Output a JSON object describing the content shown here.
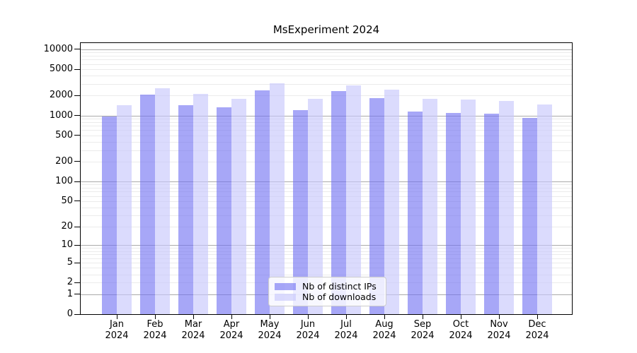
{
  "chart_data": {
    "type": "bar",
    "title": "MsExperiment 2024",
    "categories": [
      "Jan 2024",
      "Feb 2024",
      "Mar 2024",
      "Apr 2024",
      "May 2024",
      "Jun 2024",
      "Jul 2024",
      "Aug 2024",
      "Sep 2024",
      "Oct 2024",
      "Nov 2024",
      "Dec 2024"
    ],
    "series": [
      {
        "name": "Nb of distinct IPs",
        "color": "rgba(113,113,242,0.62)",
        "values": [
          970,
          2070,
          1440,
          1320,
          2380,
          1210,
          2360,
          1850,
          1140,
          1090,
          1070,
          910
        ]
      },
      {
        "name": "Nb of downloads",
        "color": "rgba(200,200,252,0.65)",
        "values": [
          1420,
          2600,
          2100,
          1800,
          3050,
          1800,
          2880,
          2470,
          1790,
          1740,
          1670,
          1470
        ]
      }
    ],
    "yscale": "log1p",
    "ylim": [
      0,
      12400
    ],
    "y_ticks": [
      0,
      1,
      2,
      5,
      10,
      20,
      50,
      100,
      200,
      500,
      1000,
      2000,
      5000,
      10000
    ],
    "xlabel": "",
    "ylabel": "",
    "grid": "horizontal only; dark lines at decades, faint log minor lines",
    "legend_position": "lower center",
    "colors": {
      "major_grid": "#aaaaaa",
      "minor_grid": "#ebebeb",
      "axis": "#000000",
      "background": "#ffffff"
    }
  }
}
